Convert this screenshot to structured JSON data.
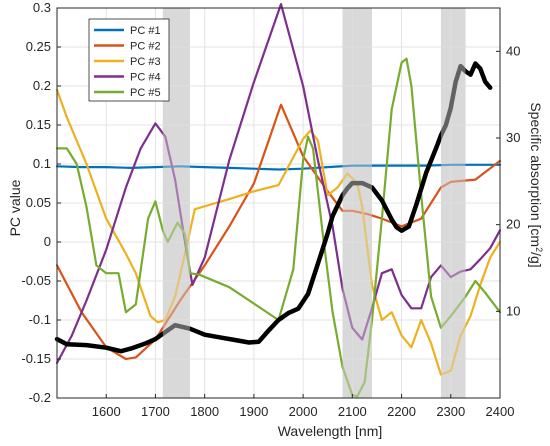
{
  "chart_data": {
    "type": "line",
    "xlabel": "Wavelength [nm]",
    "ylabel": "PC value",
    "y2label": "Specific absorption [cm",
    "y2label_sup": "2",
    "y2label_end": "/g]",
    "xlim": [
      1500,
      2400
    ],
    "ylim": [
      -0.2,
      0.3
    ],
    "y2lim": [
      0,
      45
    ],
    "xticks": [
      1600,
      1700,
      1800,
      1900,
      2000,
      2100,
      2200,
      2300,
      2400
    ],
    "yticks": [
      -0.2,
      -0.15,
      -0.1,
      -0.05,
      0,
      0.05,
      0.1,
      0.15,
      0.2,
      0.25,
      0.3
    ],
    "ytick_labels": [
      "-0.2",
      "-0.15",
      "-0.1",
      "-0.05",
      "0",
      "0.05",
      "0.1",
      "0.15",
      "0.2",
      "0.25",
      "0.3"
    ],
    "y2ticks": [
      10,
      20,
      30,
      40
    ],
    "y2tick_labels": [
      "10",
      "20",
      "30",
      "40"
    ],
    "grid": true,
    "legend_position": "top-left",
    "shaded_bands": [
      [
        1715,
        1770
      ],
      [
        2080,
        2140
      ],
      [
        2280,
        2330
      ]
    ],
    "series": [
      {
        "name": "PC #1",
        "color": "#0072BD",
        "x": [
          1500,
          1550,
          1600,
          1650,
          1700,
          1750,
          1800,
          1850,
          1900,
          1950,
          2000,
          2050,
          2100,
          2150,
          2200,
          2250,
          2300,
          2350,
          2400
        ],
        "y": [
          0.097,
          0.096,
          0.096,
          0.095,
          0.096,
          0.097,
          0.096,
          0.095,
          0.094,
          0.093,
          0.094,
          0.096,
          0.098,
          0.098,
          0.098,
          0.098,
          0.099,
          0.099,
          0.099
        ]
      },
      {
        "name": "PC #2",
        "color": "#D95319",
        "x": [
          1500,
          1550,
          1600,
          1640,
          1660,
          1700,
          1750,
          1800,
          1850,
          1900,
          1955,
          2000,
          2050,
          2080,
          2100,
          2130,
          2160,
          2200,
          2240,
          2280,
          2300,
          2350,
          2400
        ],
        "y": [
          -0.03,
          -0.09,
          -0.135,
          -0.15,
          -0.148,
          -0.125,
          -0.075,
          -0.03,
          0.02,
          0.075,
          0.176,
          0.11,
          0.065,
          0.04,
          0.04,
          0.036,
          0.03,
          0.02,
          0.03,
          0.07,
          0.077,
          0.08,
          0.104
        ]
      },
      {
        "name": "PC #3",
        "color": "#EDB120",
        "x": [
          1500,
          1520,
          1560,
          1600,
          1640,
          1660,
          1690,
          1705,
          1720,
          1740,
          1760,
          1780,
          1850,
          1900,
          1950,
          2000,
          2015,
          2030,
          2050,
          2070,
          2090,
          2110,
          2120,
          2140,
          2160,
          2180,
          2200,
          2220,
          2240,
          2260,
          2280,
          2300,
          2320,
          2340,
          2360,
          2380,
          2400
        ],
        "y": [
          0.195,
          0.16,
          0.1,
          0.03,
          -0.015,
          -0.04,
          -0.095,
          -0.103,
          -0.1,
          -0.07,
          -0.015,
          0.042,
          0.055,
          0.065,
          0.073,
          0.132,
          0.143,
          0.13,
          0.06,
          0.07,
          0.088,
          0.075,
          0.045,
          -0.055,
          -0.1,
          -0.09,
          -0.12,
          -0.135,
          -0.1,
          -0.13,
          -0.17,
          -0.165,
          -0.12,
          -0.095,
          -0.055,
          -0.02,
          0.0
        ]
      },
      {
        "name": "PC #4",
        "color": "#7E2F8E",
        "x": [
          1500,
          1530,
          1560,
          1600,
          1640,
          1670,
          1700,
          1720,
          1740,
          1760,
          1775,
          1800,
          1850,
          1900,
          1955,
          2000,
          2030,
          2060,
          2080,
          2100,
          2120,
          2140,
          2160,
          2180,
          2200,
          2220,
          2240,
          2260,
          2280,
          2300,
          2320,
          2340,
          2360,
          2380,
          2400
        ],
        "y": [
          -0.155,
          -0.12,
          -0.075,
          -0.01,
          0.07,
          0.12,
          0.152,
          0.135,
          0.08,
          0.0,
          -0.055,
          -0.02,
          0.105,
          0.205,
          0.305,
          0.2,
          0.105,
          0.02,
          -0.06,
          -0.11,
          -0.125,
          -0.085,
          -0.04,
          -0.035,
          -0.068,
          -0.085,
          -0.085,
          -0.045,
          -0.03,
          -0.045,
          -0.038,
          -0.035,
          -0.022,
          -0.008,
          0.015
        ]
      },
      {
        "name": "PC #5",
        "color": "#77AC30",
        "x": [
          1500,
          1520,
          1540,
          1560,
          1580,
          1600,
          1625,
          1640,
          1660,
          1685,
          1700,
          1715,
          1725,
          1745,
          1760,
          1770,
          1790,
          1850,
          1950,
          1980,
          2000,
          2010,
          2020,
          2040,
          2060,
          2080,
          2100,
          2110,
          2125,
          2140,
          2160,
          2180,
          2200,
          2210,
          2220,
          2240,
          2260,
          2280,
          2300,
          2330,
          2350,
          2370,
          2400
        ],
        "y": [
          0.12,
          0.12,
          0.1,
          0.045,
          -0.03,
          -0.04,
          -0.04,
          -0.09,
          -0.08,
          0.03,
          0.052,
          0.015,
          0.0,
          0.025,
          0.01,
          -0.04,
          -0.042,
          -0.058,
          -0.1,
          -0.035,
          0.105,
          0.135,
          0.12,
          0.01,
          -0.09,
          -0.16,
          -0.196,
          -0.198,
          -0.18,
          -0.1,
          0.03,
          0.17,
          0.23,
          0.235,
          0.2,
          0.06,
          -0.07,
          -0.11,
          -0.095,
          -0.07,
          -0.05,
          -0.065,
          -0.09
        ]
      },
      {
        "name": "Specific absorption",
        "color": "#000000",
        "axis": "right",
        "x": [
          1500,
          1520,
          1560,
          1600,
          1630,
          1650,
          1680,
          1700,
          1720,
          1740,
          1770,
          1800,
          1830,
          1860,
          1890,
          1910,
          1930,
          1950,
          1970,
          1990,
          2010,
          2030,
          2050,
          2060,
          2080,
          2090,
          2100,
          2120,
          2140,
          2160,
          2180,
          2190,
          2200,
          2215,
          2230,
          2250,
          2270,
          2280,
          2290,
          2300,
          2310,
          2320,
          2330,
          2340,
          2350,
          2360,
          2370,
          2380
        ],
        "y": [
          6.8,
          6.2,
          6.1,
          5.8,
          5.4,
          5.7,
          6.3,
          6.8,
          7.6,
          8.4,
          8.0,
          7.3,
          7.0,
          6.7,
          6.4,
          6.5,
          7.8,
          9.0,
          9.8,
          10.3,
          12.0,
          15.5,
          19.0,
          21.0,
          23.4,
          24.2,
          24.8,
          24.8,
          24.3,
          22.8,
          20.6,
          19.7,
          19.3,
          19.8,
          22.3,
          26.0,
          28.8,
          30.3,
          31.5,
          33.5,
          36.5,
          38.3,
          37.7,
          37.3,
          38.6,
          38.0,
          36.5,
          35.8
        ]
      }
    ]
  }
}
